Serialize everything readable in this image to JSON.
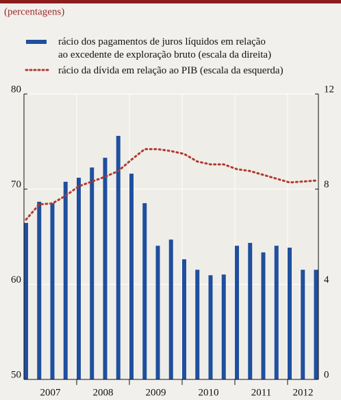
{
  "chart_data": {
    "type": "bar_line",
    "subtitle": "(percentagens)",
    "categories": [
      null,
      null,
      null,
      null,
      null,
      null,
      null,
      null,
      null,
      null,
      null,
      null,
      null,
      null,
      null,
      null,
      null,
      null,
      null,
      null,
      null,
      null,
      null
    ],
    "year_labels": [
      "2007",
      "2008",
      "2009",
      "2010",
      "2011",
      "2012"
    ],
    "series": [
      {
        "name": "rácio dos pagamentos de juros líquidos em relação\nao excedente de exploração bruto (escala da direita)",
        "color": "#1f4f9e",
        "kind": "bar",
        "axis": "y2",
        "values": [
          6.58,
          7.47,
          7.41,
          8.31,
          8.48,
          8.91,
          9.32,
          10.24,
          8.65,
          7.41,
          5.62,
          5.88,
          5.05,
          4.61,
          4.38,
          4.41,
          5.62,
          5.74,
          5.34,
          5.62,
          5.54,
          4.61,
          4.61
        ]
      },
      {
        "name": "rácio da dívida em relação ao PIB (escala da esquerda)",
        "color": "#b03a2e",
        "kind": "dotted-line",
        "values": [
          66.8,
          68.4,
          68.5,
          69.3,
          70.3,
          70.8,
          71.3,
          71.9,
          73.1,
          74.2,
          74.2,
          74.0,
          73.7,
          72.9,
          72.6,
          72.6,
          72.1,
          71.9,
          71.5,
          71.1,
          70.7,
          70.8,
          70.9
        ]
      }
    ],
    "ylim": [
      50,
      80
    ],
    "yticks": [
      50,
      60,
      70,
      80
    ],
    "y2lim": [
      0,
      12
    ],
    "y2ticks": [
      0,
      4,
      8,
      12
    ],
    "grid": true
  }
}
